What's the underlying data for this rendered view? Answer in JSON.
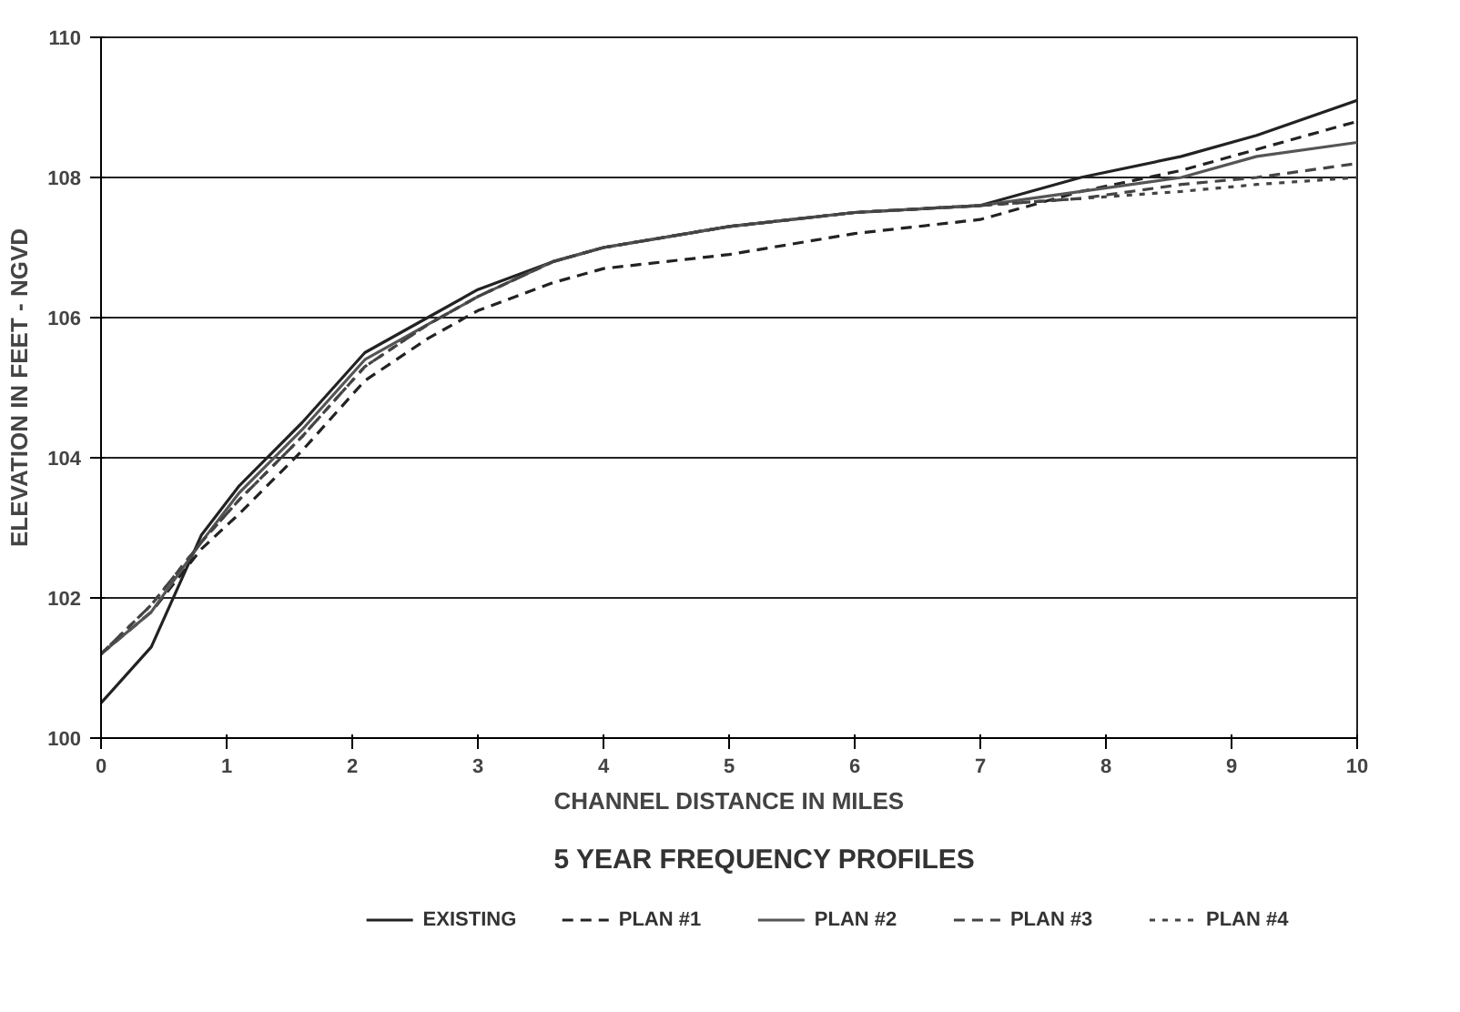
{
  "chart_data": {
    "type": "line",
    "title": "5 YEAR FREQUENCY PROFILES",
    "xlabel": "CHANNEL DISTANCE IN MILES",
    "ylabel": "ELEVATION IN FEET - NGVD",
    "x": [
      0,
      0.4,
      0.8,
      1.1,
      1.6,
      2.1,
      2.6,
      3.0,
      3.6,
      4,
      5,
      6,
      7,
      7.8,
      8.6,
      9.2,
      10
    ],
    "series": [
      {
        "name": "EXISTING",
        "color": "#222222",
        "line_style": "solid",
        "values": [
          100.5,
          101.3,
          102.9,
          103.6,
          104.5,
          105.5,
          106.0,
          106.4,
          106.8,
          107.0,
          107.3,
          107.5,
          107.6,
          108.0,
          108.3,
          108.6,
          109.1
        ]
      },
      {
        "name": "PLAN #1",
        "color": "#222222",
        "line_style": "dashed",
        "values": [
          101.2,
          101.8,
          102.7,
          103.2,
          104.1,
          105.1,
          105.7,
          106.1,
          106.5,
          106.7,
          106.9,
          107.2,
          107.4,
          107.8,
          108.1,
          108.4,
          108.8
        ]
      },
      {
        "name": "PLAN #2",
        "color": "#555555",
        "line_style": "solid",
        "values": [
          101.2,
          101.8,
          102.8,
          103.5,
          104.4,
          105.4,
          105.9,
          106.3,
          106.8,
          107.0,
          107.3,
          107.5,
          107.6,
          107.8,
          108.0,
          108.3,
          108.5
        ]
      },
      {
        "name": "PLAN #3",
        "color": "#444444",
        "line_style": "dashed",
        "values": [
          101.2,
          101.9,
          102.8,
          103.4,
          104.3,
          105.3,
          105.9,
          106.3,
          106.8,
          107.0,
          107.3,
          107.5,
          107.6,
          107.7,
          107.9,
          108.0,
          108.2
        ]
      },
      {
        "name": "PLAN #4",
        "color": "#444444",
        "line_style": "dotted",
        "values": [
          101.2,
          101.9,
          102.8,
          103.4,
          104.3,
          105.3,
          105.9,
          106.3,
          106.8,
          107.0,
          107.3,
          107.5,
          107.6,
          107.7,
          107.8,
          107.9,
          108.0
        ]
      }
    ],
    "xlim": [
      0,
      10
    ],
    "xticks": [
      0,
      1,
      2,
      3,
      4,
      5,
      6,
      7,
      8,
      9,
      10
    ],
    "ylim": [
      100,
      110
    ],
    "yticks": [
      100,
      102,
      104,
      106,
      108,
      110
    ],
    "grid": "y",
    "legend": "bottom"
  }
}
